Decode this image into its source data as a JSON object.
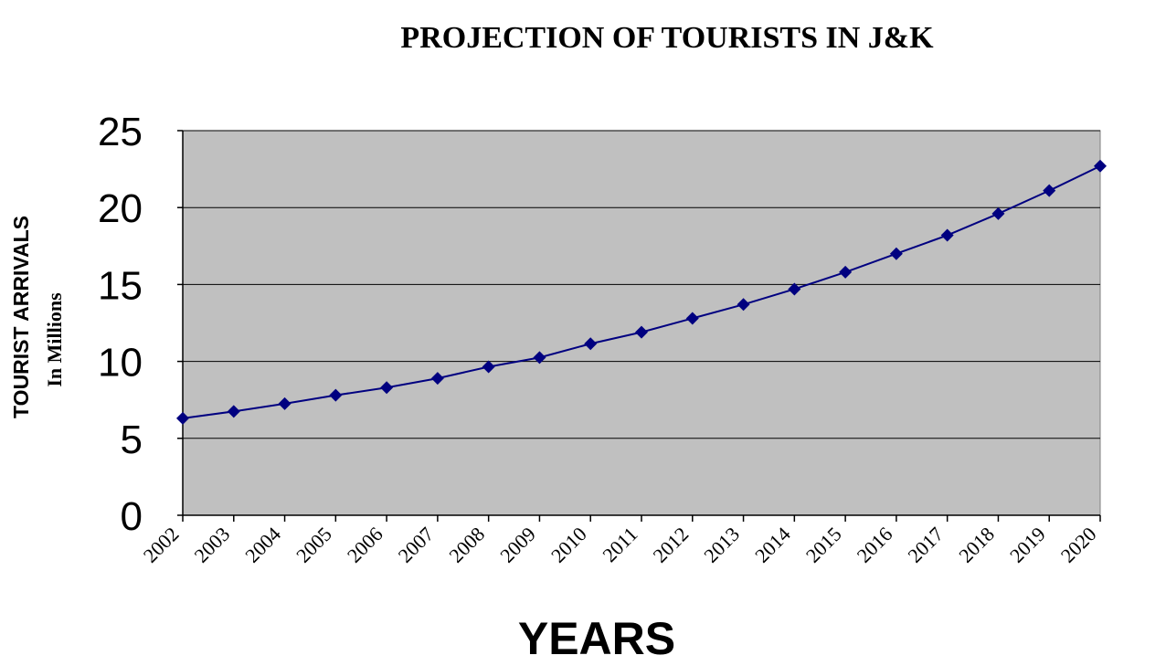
{
  "chart_data": {
    "type": "line",
    "title": "PROJECTION OF TOURISTS IN J&K",
    "xlabel": "YEARS",
    "ylabel": "TOURIST ARRIVALS",
    "ylabel_sub": "In Millions",
    "categories": [
      "2002",
      "2003",
      "2004",
      "2005",
      "2006",
      "2007",
      "2008",
      "2009",
      "2010",
      "2011",
      "2012",
      "2013",
      "2014",
      "2015",
      "2016",
      "2017",
      "2018",
      "2019",
      "2020"
    ],
    "series": [
      {
        "name": "Tourist Arrivals",
        "values": [
          6.3,
          6.75,
          7.25,
          7.8,
          8.3,
          8.9,
          9.65,
          10.25,
          11.15,
          11.9,
          12.8,
          13.7,
          14.7,
          15.8,
          17.0,
          18.2,
          19.6,
          21.1,
          22.7
        ]
      }
    ],
    "ylim": [
      0,
      25
    ],
    "yticks": [
      0,
      5,
      10,
      15,
      20,
      25
    ],
    "grid": true,
    "legend": "none",
    "colors": {
      "plot_bg": "#c0c0c0",
      "series": "#000080",
      "grid": "#000000",
      "axis": "#000000"
    }
  }
}
